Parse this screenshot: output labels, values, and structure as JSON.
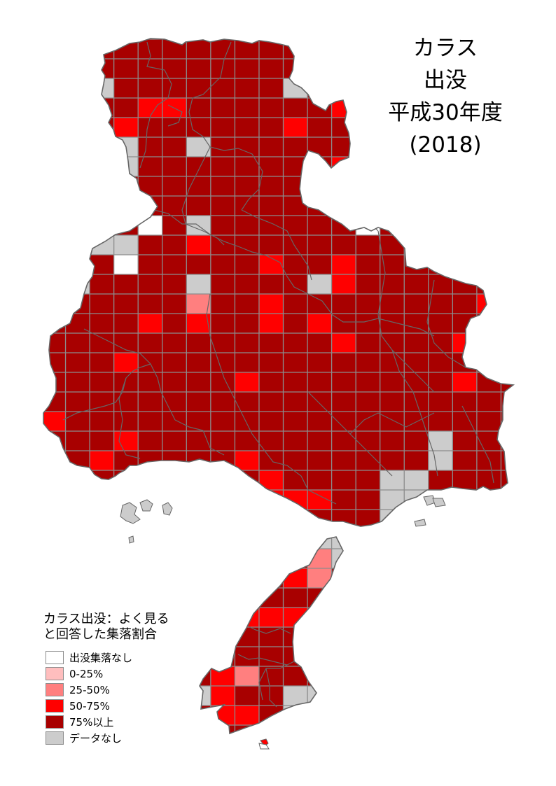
{
  "title": {
    "lines": [
      "カラス",
      "出没",
      "平成30年度",
      "(2018)"
    ]
  },
  "legend": {
    "title_lines": [
      "カラス出没：よく見る",
      "と回答した集落割合"
    ],
    "items": [
      {
        "label": "出没集落なし",
        "color": "#ffffff"
      },
      {
        "label": "0-25%",
        "color": "#ffbebe"
      },
      {
        "label": "25-50%",
        "color": "#ff7f7f"
      },
      {
        "label": "50-75%",
        "color": "#ff0000"
      },
      {
        "label": "75%以上",
        "color": "#a80000"
      },
      {
        "label": "データなし",
        "color": "#cccccc"
      }
    ]
  },
  "map": {
    "default_category": 4,
    "grid_color": "#8c8c8c",
    "boundary_color": "#666666",
    "mesh_cells": [
      [
        2,
        2,
        5
      ],
      [
        3,
        4,
        3
      ],
      [
        3,
        5,
        3
      ],
      [
        4,
        3,
        3
      ],
      [
        2,
        10,
        5
      ],
      [
        3,
        12,
        3
      ],
      [
        4,
        10,
        3
      ],
      [
        5,
        3,
        5
      ],
      [
        6,
        3,
        5
      ],
      [
        5,
        6,
        5
      ],
      [
        6,
        12,
        3
      ],
      [
        9,
        4,
        0
      ],
      [
        9,
        6,
        5
      ],
      [
        9,
        13,
        0
      ],
      [
        10,
        2,
        5
      ],
      [
        10,
        3,
        5
      ],
      [
        10,
        6,
        3
      ],
      [
        11,
        3,
        0
      ],
      [
        11,
        9,
        3
      ],
      [
        11,
        12,
        3
      ],
      [
        12,
        6,
        5
      ],
      [
        12,
        11,
        5
      ],
      [
        12,
        1,
        5
      ],
      [
        12,
        12,
        3
      ],
      [
        13,
        6,
        2
      ],
      [
        13,
        9,
        3
      ],
      [
        14,
        9,
        3
      ],
      [
        14,
        11,
        3
      ],
      [
        14,
        4,
        3
      ],
      [
        14,
        6,
        3
      ],
      [
        13,
        18,
        3
      ],
      [
        15,
        12,
        3
      ],
      [
        15,
        17,
        3
      ],
      [
        16,
        3,
        3
      ],
      [
        17,
        8,
        3
      ],
      [
        17,
        17,
        3
      ],
      [
        19,
        0,
        3
      ],
      [
        20,
        3,
        3
      ],
      [
        21,
        2,
        3
      ],
      [
        21,
        8,
        3
      ],
      [
        22,
        9,
        3
      ],
      [
        23,
        9,
        3
      ],
      [
        23,
        10,
        3
      ],
      [
        23,
        11,
        3
      ],
      [
        20,
        16,
        5
      ],
      [
        21,
        16,
        5
      ],
      [
        22,
        14,
        5
      ],
      [
        22,
        15,
        5
      ],
      [
        23,
        14,
        5
      ],
      [
        23,
        15,
        5
      ],
      [
        24,
        14,
        5
      ],
      [
        24,
        15,
        5
      ],
      [
        25,
        11,
        5
      ],
      [
        25,
        12,
        5
      ],
      [
        26,
        12,
        5
      ],
      [
        26,
        11,
        2
      ],
      [
        27,
        11,
        2
      ],
      [
        27,
        10,
        3
      ],
      [
        29,
        8,
        3
      ],
      [
        29,
        9,
        3
      ],
      [
        29,
        10,
        3
      ],
      [
        32,
        7,
        3
      ],
      [
        32,
        8,
        2
      ],
      [
        33,
        6,
        5
      ],
      [
        33,
        7,
        3
      ],
      [
        33,
        10,
        5
      ],
      [
        33,
        11,
        5
      ],
      [
        34,
        7,
        3
      ],
      [
        34,
        8,
        3
      ],
      [
        34,
        10,
        5
      ]
    ]
  }
}
